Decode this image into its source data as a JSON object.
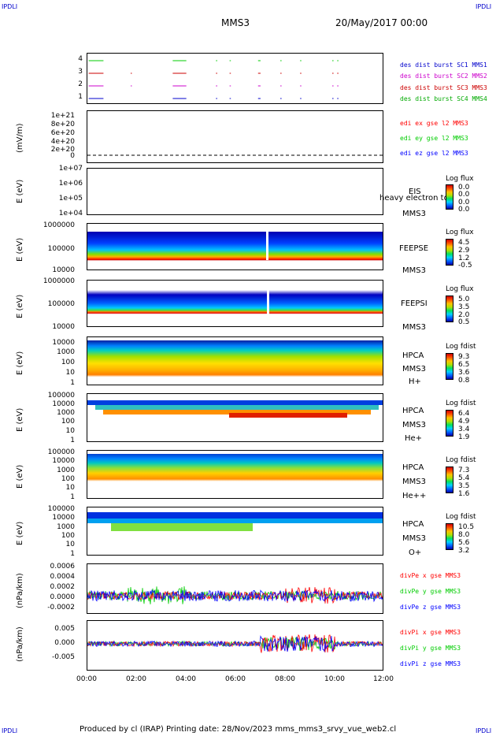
{
  "corners": {
    "tl": "IPDLI",
    "tr": "IPDLI",
    "bl": "IPDLI",
    "br": "IPDLI"
  },
  "header": {
    "spacecraft": "MMS3",
    "date": "20/May/2017 00:00"
  },
  "footer": {
    "text": "Produced by cl (IRAP)   Printing date: 28/Nov/2023   mms_mms3_srvy_vue_web2.cl"
  },
  "colors": {
    "mms1": "#0000cc",
    "mms2": "#cc00cc",
    "mms3": "#cc0000",
    "mms4": "#00cc00",
    "x": "#ff0000",
    "y": "#00cc00",
    "z": "#0000ff"
  },
  "chart_data": [
    {
      "type": "line",
      "id": "burst",
      "yticks": [
        "4",
        "3",
        "2",
        "1"
      ],
      "legend": [
        "des dist burst SC1 MMS1",
        "des dist burst SC2 MMS2",
        "des dist burst SC3 MMS3",
        "des dist burst SC4 MMS4"
      ],
      "series": [
        {
          "name": "des dist burst SC1 MMS1",
          "level": 1,
          "segments": [
            [
              0.05,
              0.65
            ],
            [
              3.45,
              4.0
            ],
            [
              5.2,
              5.25
            ],
            [
              5.75,
              5.8
            ],
            [
              6.9,
              7.0
            ],
            [
              7.8,
              7.85
            ],
            [
              8.6,
              8.65
            ],
            [
              9.9,
              9.95
            ],
            [
              10.1,
              10.15
            ]
          ]
        },
        {
          "name": "des dist burst SC2 MMS2",
          "level": 2,
          "segments": [
            [
              0.05,
              0.65
            ],
            [
              1.75,
              1.78
            ],
            [
              3.45,
              4.0
            ],
            [
              5.2,
              5.25
            ],
            [
              5.75,
              5.8
            ],
            [
              6.9,
              7.0
            ],
            [
              7.8,
              7.85
            ],
            [
              8.6,
              8.65
            ],
            [
              9.9,
              9.95
            ],
            [
              10.1,
              10.15
            ]
          ]
        },
        {
          "name": "des dist burst SC3 MMS3",
          "level": 3,
          "segments": [
            [
              0.05,
              0.65
            ],
            [
              1.75,
              1.78
            ],
            [
              3.45,
              4.0
            ],
            [
              5.2,
              5.25
            ],
            [
              5.75,
              5.8
            ],
            [
              6.9,
              7.0
            ],
            [
              7.8,
              7.85
            ],
            [
              8.6,
              8.65
            ],
            [
              9.9,
              9.95
            ],
            [
              10.1,
              10.15
            ]
          ]
        },
        {
          "name": "des dist burst SC4 MMS4",
          "level": 4,
          "segments": [
            [
              0.05,
              0.65
            ],
            [
              3.45,
              4.0
            ],
            [
              5.2,
              5.25
            ],
            [
              5.75,
              5.8
            ],
            [
              6.9,
              7.0
            ],
            [
              7.8,
              7.85
            ],
            [
              8.6,
              8.65
            ],
            [
              9.9,
              9.95
            ],
            [
              10.1,
              10.15
            ]
          ]
        }
      ]
    },
    {
      "type": "line",
      "id": "edi",
      "ylabel": "(mV/m)",
      "yticks": [
        "1e+21",
        "8e+20",
        "6e+20",
        "4e+20",
        "2e+20",
        "0"
      ],
      "legend": [
        "edi ex gse l2 MMS3",
        "edi ey gse l2 MMS3",
        "edi ez gse l2 MMS3"
      ]
    },
    {
      "type": "heatmap",
      "id": "eis",
      "ylabel": "E (eV)",
      "yticks": [
        "1e+07",
        "1e+06",
        "1e+05",
        "1e+04"
      ],
      "instrument": [
        "EIS",
        "MMS3"
      ],
      "overlay": "heavy electron to",
      "colorbar": {
        "title": "Log flux",
        "ticks": [
          "0.0",
          "0.0",
          "0.0",
          "0.0"
        ]
      }
    },
    {
      "type": "heatmap",
      "id": "feepse",
      "ylabel": "E (eV)",
      "yticks": [
        "1000000",
        "100000",
        "10000"
      ],
      "instrument": [
        "FEEPSE",
        "MMS3"
      ],
      "colorbar": {
        "title": "Log flux",
        "ticks": [
          "4.5",
          "2.9",
          "1.2",
          "-0.5"
        ]
      }
    },
    {
      "type": "heatmap",
      "id": "feepsi",
      "ylabel": "E (eV)",
      "yticks": [
        "1000000",
        "100000",
        "10000"
      ],
      "instrument": [
        "FEEPSI",
        "MMS3"
      ],
      "colorbar": {
        "title": "Log flux",
        "ticks": [
          "5.0",
          "3.5",
          "2.0",
          "0.5"
        ]
      }
    },
    {
      "type": "heatmap",
      "id": "hpca_h",
      "ylabel": "E (eV)",
      "yticks": [
        "10000",
        "1000",
        "100",
        "10",
        "1"
      ],
      "instrument": [
        "HPCA",
        "MMS3",
        "H+"
      ],
      "colorbar": {
        "title": "Log fdist",
        "ticks": [
          "9.3",
          "6.5",
          "3.6",
          "0.8"
        ]
      }
    },
    {
      "type": "heatmap",
      "id": "hpca_he",
      "ylabel": "E (eV)",
      "yticks": [
        "100000",
        "10000",
        "1000",
        "100",
        "10",
        "1"
      ],
      "instrument": [
        "HPCA",
        "MMS3",
        "He+"
      ],
      "colorbar": {
        "title": "Log fdist",
        "ticks": [
          "6.4",
          "4.9",
          "3.4",
          "1.9"
        ]
      }
    },
    {
      "type": "heatmap",
      "id": "hpca_hepp",
      "ylabel": "E (eV)",
      "yticks": [
        "100000",
        "10000",
        "1000",
        "100",
        "10",
        "1"
      ],
      "instrument": [
        "HPCA",
        "MMS3",
        "He++"
      ],
      "colorbar": {
        "title": "Log fdist",
        "ticks": [
          "7.3",
          "5.4",
          "3.5",
          "1.6"
        ]
      }
    },
    {
      "type": "heatmap",
      "id": "hpca_o",
      "ylabel": "E (eV)",
      "yticks": [
        "100000",
        "10000",
        "1000",
        "100",
        "10",
        "1"
      ],
      "instrument": [
        "HPCA",
        "MMS3",
        "O+"
      ],
      "colorbar": {
        "title": "Log fdist",
        "ticks": [
          "10.5",
          "8.0",
          "5.6",
          "3.2"
        ]
      }
    },
    {
      "type": "line",
      "id": "divpe",
      "ylabel": "(nPa/km)",
      "yticks": [
        "0.0006",
        "0.0004",
        "0.0002",
        "0.0000",
        "-0.0002"
      ],
      "ylim": [
        -0.0003,
        0.00065
      ],
      "legend": [
        "divPe x gse MMS3",
        "divPe y gse MMS3",
        "divPe z gse MMS3"
      ]
    },
    {
      "type": "line",
      "id": "divpi",
      "ylabel": "(nPa/km)",
      "yticks": [
        "0.005",
        "0.000",
        "-0.005"
      ],
      "ylim": [
        -0.0085,
        0.0075
      ],
      "legend": [
        "divPi x gse MMS3",
        "divPi y gse MMS3",
        "divPi z gse MMS3"
      ]
    }
  ],
  "xaxis": {
    "ticks": [
      "00:00",
      "02:00",
      "04:00",
      "06:00",
      "08:00",
      "10:00",
      "12:00"
    ],
    "range_hours": [
      0,
      12
    ]
  }
}
